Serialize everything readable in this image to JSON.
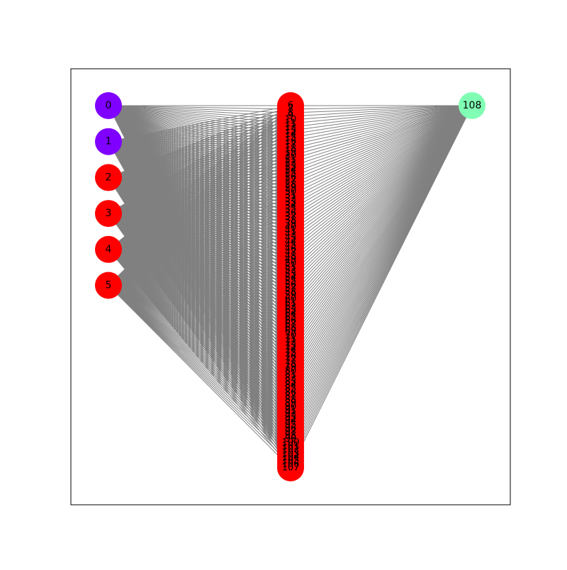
{
  "graph": {
    "left_nodes": [
      {
        "label": "0",
        "color": "#7f00ff"
      },
      {
        "label": "1",
        "color": "#7f00ff"
      },
      {
        "label": "2",
        "color": "#ff0000"
      },
      {
        "label": "3",
        "color": "#ff0000"
      },
      {
        "label": "4",
        "color": "#ff0000"
      },
      {
        "label": "5",
        "color": "#ff0000"
      }
    ],
    "middle_nodes": {
      "first_label": 6,
      "last_label": 107,
      "color": "#ff0000"
    },
    "right_nodes": [
      {
        "label": "108",
        "color": "#80ffb4"
      }
    ],
    "edge_color": "#808080",
    "connectivity": "every left node and the right node connect to every middle node"
  }
}
